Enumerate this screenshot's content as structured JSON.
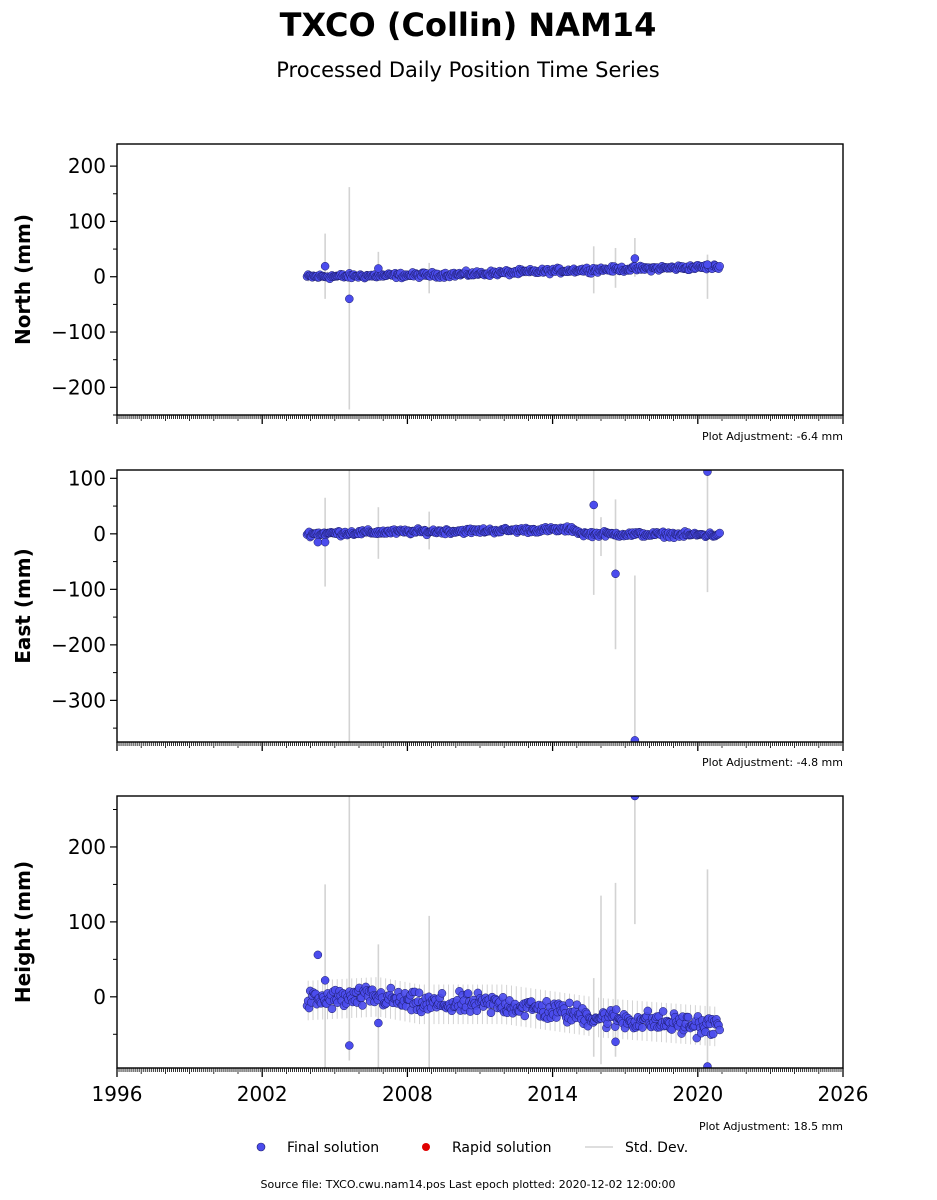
{
  "title": "TXCO (Collin) NAM14",
  "subtitle": "Processed Daily Position Time Series",
  "colors": {
    "final": "#4b4ced",
    "rapid": "#e00000",
    "stddev": "#d3d3d3",
    "edge": "#1a1a66"
  },
  "legend": {
    "final": "Final solution",
    "rapid": "Rapid solution",
    "stddev": "Std. Dev."
  },
  "footer": "Source file: TXCO.cwu.nam14.pos  Last epoch plotted: 2020-12-02 12:00:00",
  "chart_data": [
    {
      "type": "scatter",
      "component": "north",
      "ylabel": "North (mm)",
      "adjustment": "Plot Adjustment: -6.4 mm",
      "xlim": [
        1996,
        2026
      ],
      "ylim": [
        -250,
        240
      ],
      "yticks": [
        200,
        100,
        0,
        -100,
        -200
      ],
      "show_xtick_labels": false,
      "trend": [
        [
          2003.85,
          0
        ],
        [
          2010,
          4
        ],
        [
          2015,
          12
        ],
        [
          2020.9,
          18
        ]
      ],
      "noise": 4,
      "outliers": [
        [
          2004.6,
          19
        ],
        [
          2005.6,
          -40
        ],
        [
          2006.8,
          15
        ],
        [
          2017.4,
          33
        ],
        [
          2020.4,
          22
        ]
      ],
      "error_bars": [
        [
          2004.6,
          -40,
          78
        ],
        [
          2005.6,
          -240,
          162
        ],
        [
          2006.8,
          -5,
          45
        ],
        [
          2008.9,
          -30,
          25
        ],
        [
          2015.7,
          -30,
          55
        ],
        [
          2016.6,
          -20,
          52
        ],
        [
          2017.4,
          0,
          70
        ],
        [
          2020.4,
          -40,
          40
        ]
      ]
    },
    {
      "type": "scatter",
      "component": "east",
      "ylabel": "East (mm)",
      "adjustment": "Plot Adjustment: -4.8 mm",
      "xlim": [
        1996,
        2026
      ],
      "ylim": [
        -375,
        115
      ],
      "yticks": [
        100,
        0,
        -100,
        -200,
        -300
      ],
      "show_xtick_labels": false,
      "trend": [
        [
          2003.85,
          0
        ],
        [
          2007,
          3
        ],
        [
          2014.9,
          8
        ],
        [
          2015.2,
          0
        ],
        [
          2020.9,
          -2
        ]
      ],
      "noise": 4,
      "outliers": [
        [
          2004.3,
          -15
        ],
        [
          2004.6,
          -15
        ],
        [
          2015.7,
          52
        ],
        [
          2016.6,
          -72
        ],
        [
          2017.4,
          -372
        ],
        [
          2020.4,
          112
        ]
      ],
      "error_bars": [
        [
          2004.6,
          -95,
          65
        ],
        [
          2005.6,
          -375,
          115
        ],
        [
          2006.8,
          -45,
          48
        ],
        [
          2008.9,
          -28,
          40
        ],
        [
          2015.7,
          -110,
          115
        ],
        [
          2016.0,
          -40,
          30
        ],
        [
          2016.6,
          -208,
          62
        ],
        [
          2017.4,
          -375,
          -75
        ],
        [
          2020.4,
          -105,
          115
        ]
      ]
    },
    {
      "type": "scatter",
      "component": "height",
      "ylabel": "Height (mm)",
      "adjustment": "Plot Adjustment: 18.5 mm",
      "xlim": [
        1996,
        2026
      ],
      "ylim": [
        -95,
        268
      ],
      "yticks": [
        200,
        100,
        0
      ],
      "xticks": [
        1996,
        2002,
        2008,
        2014,
        2020,
        2026
      ],
      "show_xtick_labels": true,
      "trend": [
        [
          2003.85,
          -5
        ],
        [
          2006.8,
          0
        ],
        [
          2008.5,
          -10
        ],
        [
          2012,
          -10
        ],
        [
          2016,
          -28
        ],
        [
          2020.9,
          -40
        ]
      ],
      "noise": 12,
      "outliers": [
        [
          2004.3,
          56
        ],
        [
          2004.6,
          22
        ],
        [
          2005.6,
          -65
        ],
        [
          2006.8,
          -35
        ],
        [
          2016.6,
          -60
        ],
        [
          2017.4,
          268
        ],
        [
          2020.4,
          -93
        ]
      ],
      "error_bars": [
        [
          2004.6,
          -95,
          150
        ],
        [
          2005.6,
          -85,
          268
        ],
        [
          2006.8,
          -95,
          70
        ],
        [
          2008.9,
          -95,
          108
        ],
        [
          2015.7,
          -80,
          25
        ],
        [
          2016.0,
          -90,
          135
        ],
        [
          2016.6,
          -80,
          152
        ],
        [
          2017.4,
          97,
          268
        ],
        [
          2020.4,
          -95,
          170
        ]
      ]
    }
  ]
}
